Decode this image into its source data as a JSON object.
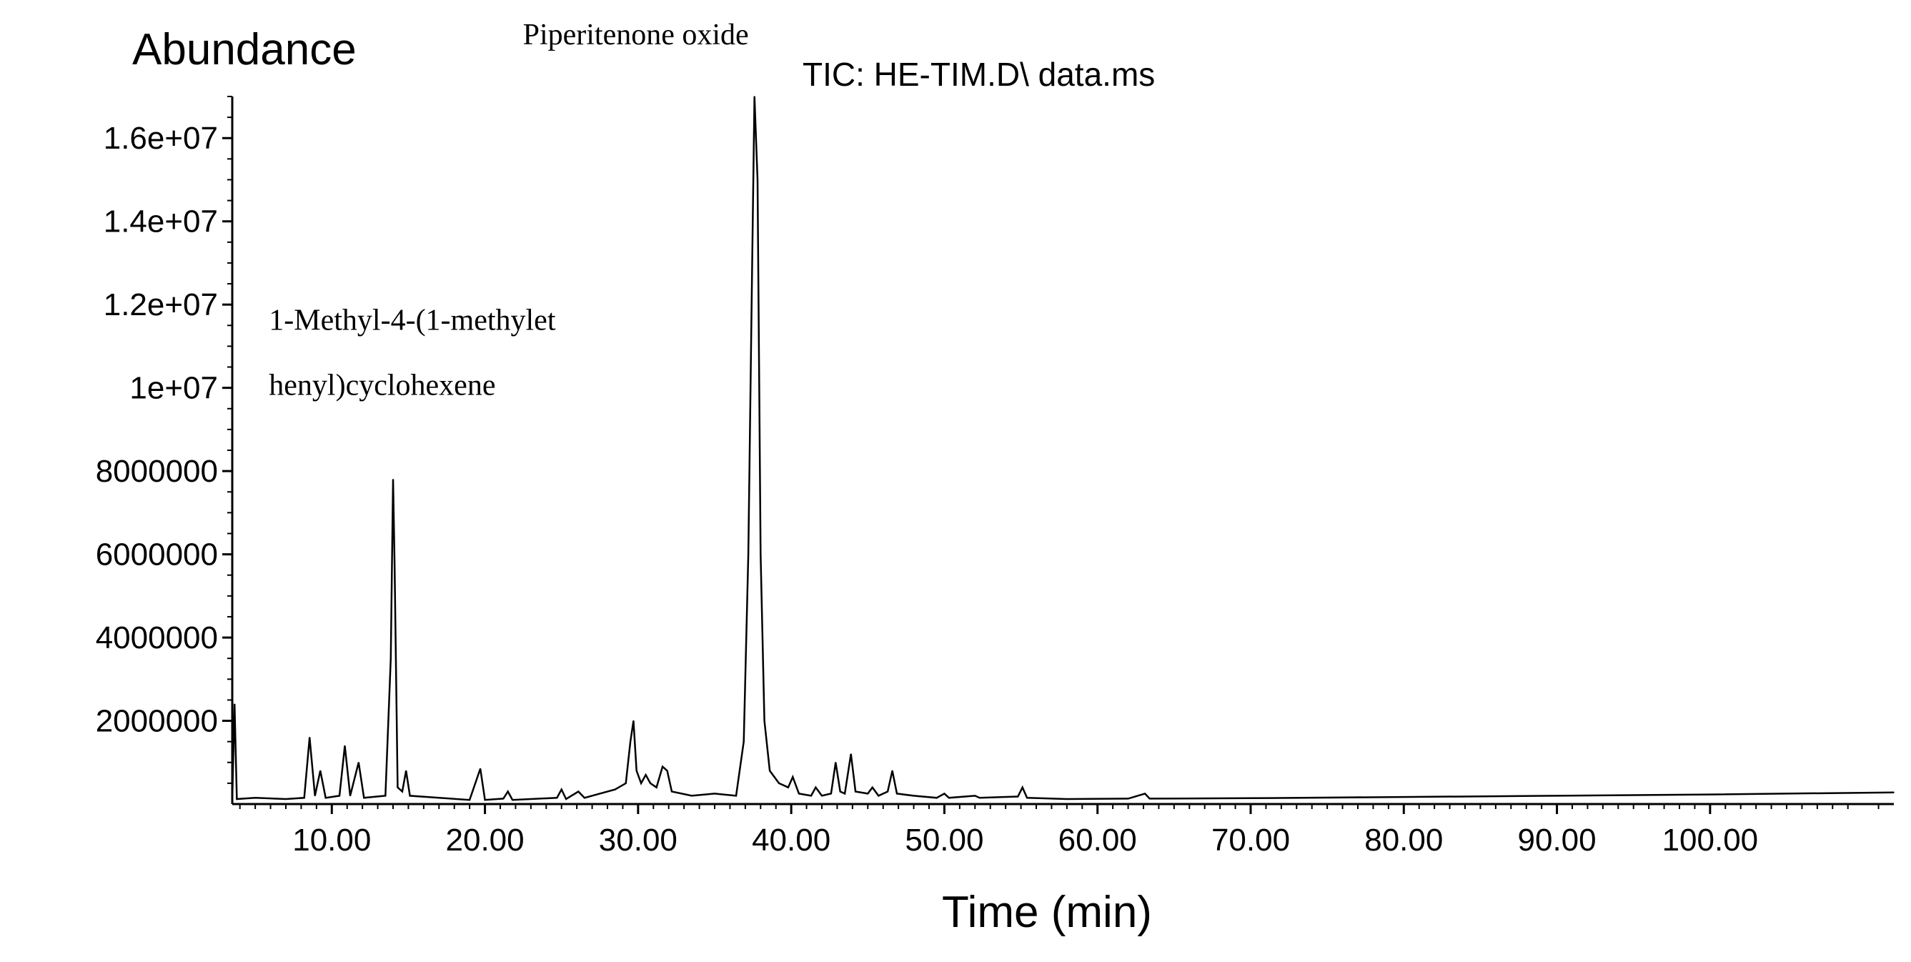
{
  "chart_data": {
    "type": "line",
    "title": "TIC: HE-TIM.D\\ data.ms",
    "ylabel": "Abundance",
    "xlabel": "Time (min)",
    "xlim": [
      3.5,
      112
    ],
    "ylim": [
      0,
      17000000
    ],
    "x_ticks": [
      10,
      20,
      30,
      40,
      50,
      60,
      70,
      80,
      90,
      100
    ],
    "x_tick_labels": [
      "10.00",
      "20.00",
      "30.00",
      "40.00",
      "50.00",
      "60.00",
      "70.00",
      "80.00",
      "90.00",
      "100.00"
    ],
    "y_ticks": [
      2000000,
      4000000,
      6000000,
      8000000,
      10000000,
      12000000,
      14000000,
      16000000
    ],
    "y_tick_labels": [
      "2000000",
      "4000000",
      "6000000",
      "8000000",
      "1e+07",
      "1.2e+07",
      "1.4e+07",
      "1.6e+07"
    ],
    "annotations": [
      {
        "text": "Piperitenone oxide",
        "x": 37.6,
        "y": 17000000
      },
      {
        "text": "1-Methyl-4-(1-methylet",
        "x": 14.2,
        "y": 11600000
      },
      {
        "text": "henyl)cyclohexene",
        "x": 14.2,
        "y": 10000000
      }
    ],
    "line_color": "#000000",
    "grid": false,
    "series": [
      {
        "values": [
          [
            3.5,
            100000
          ],
          [
            3.65,
            2400000
          ],
          [
            3.8,
            120000
          ],
          [
            5.0,
            150000
          ],
          [
            7.0,
            120000
          ],
          [
            8.2,
            150000
          ],
          [
            8.55,
            1600000
          ],
          [
            8.9,
            200000
          ],
          [
            9.25,
            800000
          ],
          [
            9.6,
            150000
          ],
          [
            10.5,
            200000
          ],
          [
            10.85,
            1400000
          ],
          [
            11.2,
            200000
          ],
          [
            11.75,
            1000000
          ],
          [
            12.1,
            150000
          ],
          [
            13.5,
            200000
          ],
          [
            13.85,
            3500000
          ],
          [
            14.0,
            7800000
          ],
          [
            14.1,
            5800000
          ],
          [
            14.3,
            400000
          ],
          [
            14.6,
            300000
          ],
          [
            14.85,
            800000
          ],
          [
            15.1,
            200000
          ],
          [
            17.0,
            150000
          ],
          [
            19.0,
            100000
          ],
          [
            19.7,
            850000
          ],
          [
            20.0,
            100000
          ],
          [
            21.2,
            130000
          ],
          [
            21.5,
            300000
          ],
          [
            21.8,
            100000
          ],
          [
            24.7,
            150000
          ],
          [
            25.0,
            350000
          ],
          [
            25.3,
            120000
          ],
          [
            26.1,
            300000
          ],
          [
            26.5,
            150000
          ],
          [
            27.5,
            250000
          ],
          [
            28.5,
            350000
          ],
          [
            29.2,
            500000
          ],
          [
            29.5,
            1500000
          ],
          [
            29.7,
            2000000
          ],
          [
            29.9,
            800000
          ],
          [
            30.2,
            500000
          ],
          [
            30.5,
            700000
          ],
          [
            30.8,
            500000
          ],
          [
            31.2,
            400000
          ],
          [
            31.6,
            900000
          ],
          [
            31.9,
            800000
          ],
          [
            32.2,
            300000
          ],
          [
            33.5,
            200000
          ],
          [
            35.0,
            250000
          ],
          [
            36.4,
            200000
          ],
          [
            36.9,
            1500000
          ],
          [
            37.2,
            6000000
          ],
          [
            37.45,
            13000000
          ],
          [
            37.6,
            17000000
          ],
          [
            37.8,
            15000000
          ],
          [
            38.0,
            6000000
          ],
          [
            38.25,
            2000000
          ],
          [
            38.6,
            800000
          ],
          [
            39.2,
            500000
          ],
          [
            39.8,
            400000
          ],
          [
            40.1,
            650000
          ],
          [
            40.5,
            250000
          ],
          [
            41.3,
            200000
          ],
          [
            41.6,
            400000
          ],
          [
            42.0,
            200000
          ],
          [
            42.6,
            250000
          ],
          [
            42.9,
            1000000
          ],
          [
            43.2,
            300000
          ],
          [
            43.5,
            250000
          ],
          [
            43.9,
            1200000
          ],
          [
            44.2,
            300000
          ],
          [
            45.0,
            250000
          ],
          [
            45.3,
            400000
          ],
          [
            45.7,
            200000
          ],
          [
            46.3,
            300000
          ],
          [
            46.6,
            800000
          ],
          [
            46.9,
            250000
          ],
          [
            48.0,
            200000
          ],
          [
            49.5,
            150000
          ],
          [
            50.0,
            250000
          ],
          [
            50.3,
            150000
          ],
          [
            52.0,
            200000
          ],
          [
            52.3,
            150000
          ],
          [
            54.8,
            180000
          ],
          [
            55.1,
            400000
          ],
          [
            55.4,
            150000
          ],
          [
            58.0,
            120000
          ],
          [
            62.0,
            130000
          ],
          [
            63.1,
            250000
          ],
          [
            63.4,
            130000
          ],
          [
            70.0,
            140000
          ],
          [
            80.0,
            170000
          ],
          [
            90.0,
            200000
          ],
          [
            100.0,
            230000
          ],
          [
            112.0,
            280000
          ]
        ]
      }
    ]
  }
}
